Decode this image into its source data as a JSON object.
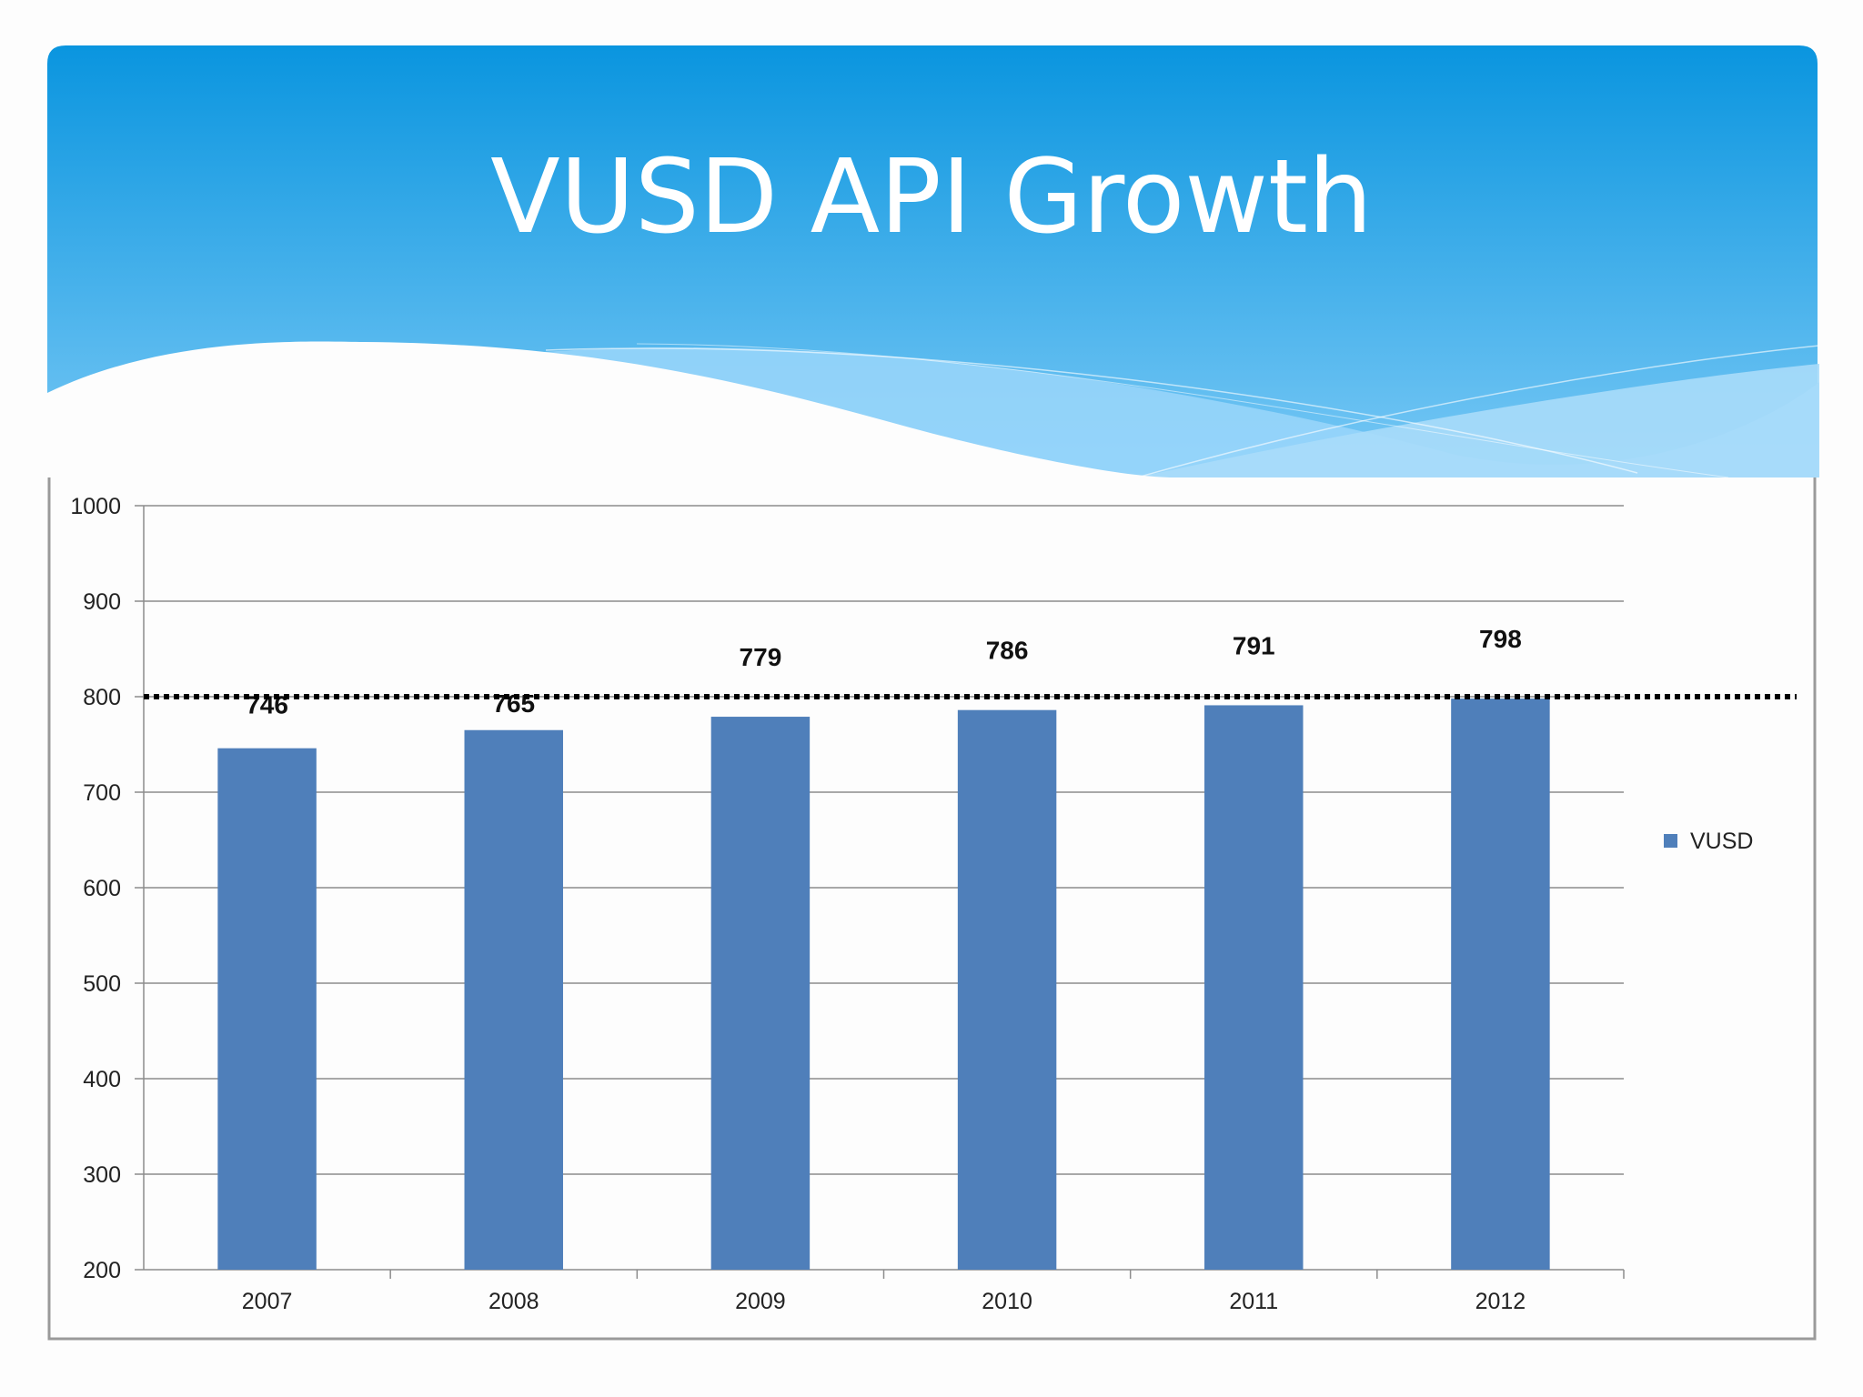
{
  "slide": {
    "title": "VUSD API Growth"
  },
  "colors": {
    "bar": "#4F7FBA",
    "banner_top": "#0A95DF",
    "banner_bottom": "#78C8F5",
    "grid": "#8C8C8C",
    "frame": "#9A9A9A"
  },
  "chart_data": {
    "type": "bar",
    "title": "",
    "xlabel": "",
    "ylabel": "",
    "categories": [
      "2007",
      "2008",
      "2009",
      "2010",
      "2011",
      "2012"
    ],
    "series": [
      {
        "name": "VUSD",
        "values": [
          746,
          765,
          779,
          786,
          791,
          798
        ]
      }
    ],
    "data_labels": [
      "746",
      "765",
      "779",
      "786",
      "791",
      "798"
    ],
    "ylim": [
      200,
      1000
    ],
    "yticks": [
      200,
      300,
      400,
      500,
      600,
      700,
      800,
      900,
      1000
    ],
    "ytick_labels": [
      "200",
      "300",
      "400",
      "500",
      "600",
      "700",
      "800",
      "900",
      "1000"
    ],
    "grid": true,
    "legend": {
      "position": "right",
      "entries": [
        "VUSD"
      ]
    },
    "reference_line": {
      "value": 800,
      "style": "dotted"
    }
  }
}
